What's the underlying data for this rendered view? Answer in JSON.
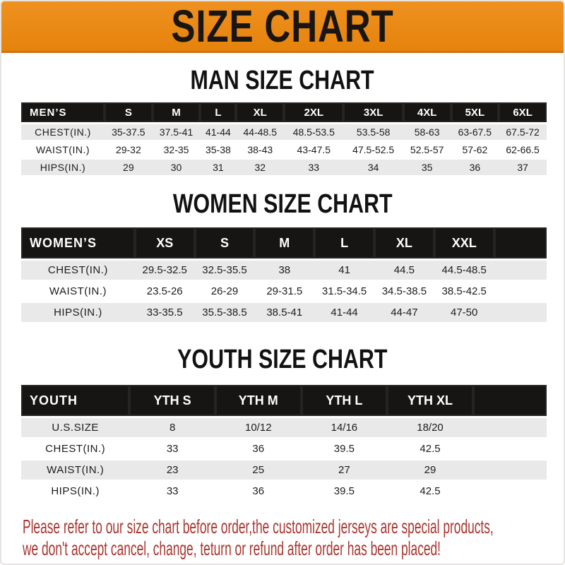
{
  "banner": {
    "title": "SIZE CHART"
  },
  "colors": {
    "banner_orange": "#e8860e",
    "header_row_black": "#171514",
    "stripe_gray": "#e9e9e9",
    "footer_red": "#a8362f"
  },
  "men": {
    "heading": "MAN SIZE CHART",
    "corner": "MEN’S",
    "columns": [
      "S",
      "M",
      "L",
      "XL",
      "2XL",
      "3XL",
      "4XL",
      "5XL",
      "6XL"
    ],
    "rows": [
      {
        "label": "CHEST(IN.)",
        "values": [
          "35-37.5",
          "37.5-41",
          "41-44",
          "44-48.5",
          "48.5-53.5",
          "53.5-58",
          "58-63",
          "63-67.5",
          "67.5-72"
        ]
      },
      {
        "label": "WAIST(IN.)",
        "values": [
          "29-32",
          "32-35",
          "35-38",
          "38-43",
          "43-47.5",
          "47.5-52.5",
          "52.5-57",
          "57-62",
          "62-66.5"
        ]
      },
      {
        "label": "HIPS(IN.)",
        "values": [
          "29",
          "30",
          "31",
          "32",
          "33",
          "34",
          "35",
          "36",
          "37"
        ]
      }
    ]
  },
  "women": {
    "heading": "WOMEN SIZE CHART",
    "corner": "WOMEN’S",
    "columns": [
      "XS",
      "S",
      "M",
      "L",
      "XL",
      "XXL"
    ],
    "rows": [
      {
        "label": "CHEST(IN.)",
        "values": [
          "29.5-32.5",
          "32.5-35.5",
          "38",
          "41",
          "44.5",
          "44.5-48.5"
        ]
      },
      {
        "label": "WAIST(IN.)",
        "values": [
          "23.5-26",
          "26-29",
          "29-31.5",
          "31.5-34.5",
          "34.5-38.5",
          "38.5-42.5"
        ]
      },
      {
        "label": "HIPS(IN.)",
        "values": [
          "33-35.5",
          "35.5-38.5",
          "38.5-41",
          "41-44",
          "44-47",
          "47-50"
        ]
      }
    ]
  },
  "youth": {
    "heading": "YOUTH SIZE CHART",
    "corner": "YOUTH",
    "columns": [
      "YTH S",
      "YTH M",
      "YTH L",
      "YTH XL"
    ],
    "rows": [
      {
        "label": "U.S.SIZE",
        "values": [
          "8",
          "10/12",
          "14/16",
          "18/20"
        ]
      },
      {
        "label": "CHEST(IN.)",
        "values": [
          "33",
          "36",
          "39.5",
          "42.5"
        ]
      },
      {
        "label": "WAIST(IN.)",
        "values": [
          "23",
          "25",
          "27",
          "29"
        ]
      },
      {
        "label": "HIPS(IN.)",
        "values": [
          "33",
          "36",
          "39.5",
          "42.5"
        ]
      }
    ]
  },
  "footer": {
    "line1": "Please refer to our size chart before order,the customized jerseys are special products,",
    "line2": "we don't accept cancel, change, teturn or refund after order has been placed!"
  }
}
